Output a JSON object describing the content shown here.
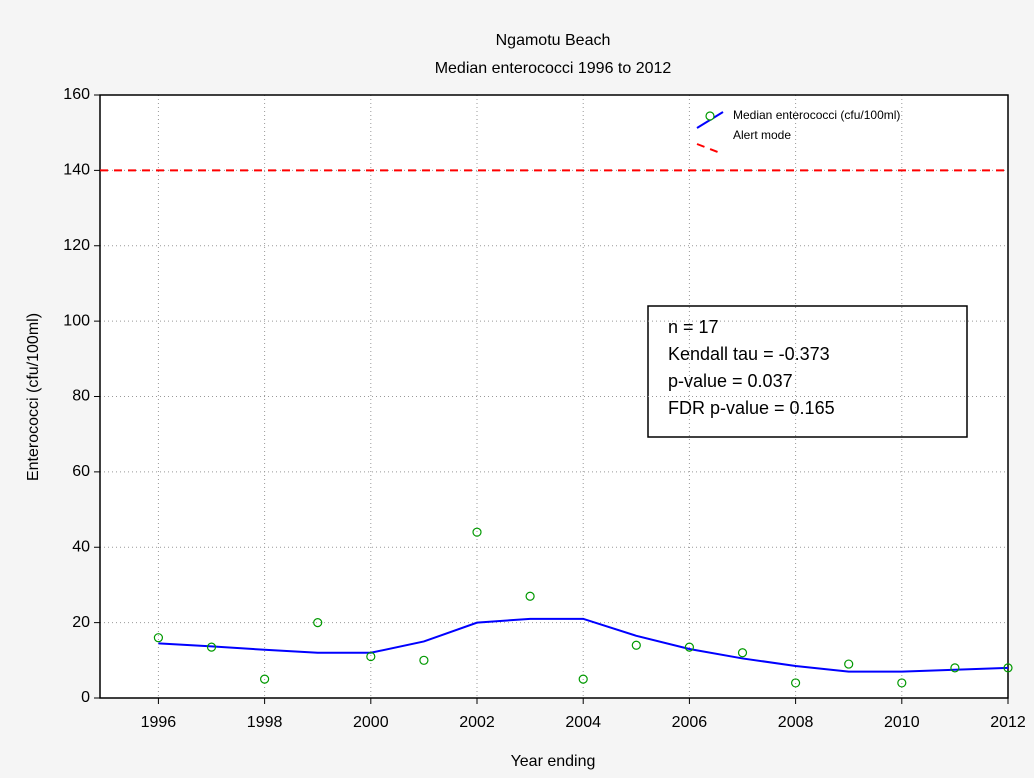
{
  "chart_data": {
    "type": "line",
    "title": "Ngamotu Beach",
    "subtitle": "Median enterococci 1996 to 2012",
    "x_label": "Year ending",
    "y_label": "Enterococci (cfu/100ml)",
    "x": [
      1996,
      1997,
      1998,
      1999,
      2000,
      2001,
      2002,
      2003,
      2004,
      2005,
      2006,
      2007,
      2008,
      2009,
      2010,
      2011,
      2012
    ],
    "series": [
      {
        "name": "Median enterococci (cfu/100ml)",
        "color": "#0000ff",
        "marker_color": "#009900",
        "values": [
          14.5,
          13.7,
          12.8,
          12,
          12,
          15,
          20,
          21,
          21,
          16.5,
          13,
          10.5,
          8.5,
          7,
          7,
          7.5,
          8
        ],
        "observed": [
          16,
          13.5,
          5,
          20,
          11,
          10,
          44,
          27,
          5,
          14,
          13.5,
          12,
          4,
          9,
          4,
          8,
          8
        ]
      }
    ],
    "reference_line": {
      "name": "Alert mode",
      "value": 140,
      "color": "#ff0000",
      "style": "dashed"
    },
    "annotations": [
      "n = 17",
      "Kendall tau = -0.373",
      "p-value = 0.037",
      "FDR p-value = 0.165"
    ],
    "xlim": [
      1994.9,
      2012
    ],
    "ylim": [
      0,
      160
    ],
    "xticks": [
      1996,
      1998,
      2000,
      2002,
      2004,
      2006,
      2008,
      2010,
      2012
    ],
    "yticks": [
      0,
      20,
      40,
      60,
      80,
      100,
      120,
      140,
      160
    ],
    "grid": true,
    "legend": "top-right"
  }
}
